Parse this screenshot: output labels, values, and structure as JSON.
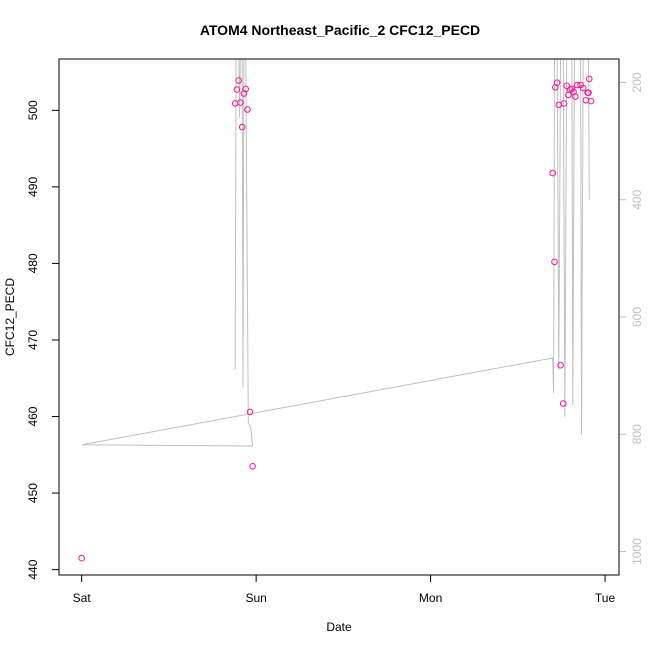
{
  "colors": {
    "points": "#ff1493",
    "line": "#c0c0c0",
    "axis": "#000000",
    "right_axis": "#c0c0c0"
  },
  "chart_data": {
    "type": "scatter",
    "title": "ATOM4 Northeast_Pacific_2 CFC12_PECD",
    "xlabel": "Date",
    "ylabel": "CFC12_PECD",
    "x_tick_labels": [
      "Sat",
      "Sun",
      "Mon",
      "Tue"
    ],
    "x_tick_days": [
      0,
      1,
      2,
      3
    ],
    "xlim_days": [
      -0.13,
      3.08
    ],
    "ylim": [
      439.3,
      506.7
    ],
    "y_ticks": [
      440,
      450,
      460,
      470,
      480,
      490,
      500
    ],
    "right_axis": {
      "label": "",
      "ticks": [
        200,
        400,
        600,
        800,
        1000
      ],
      "reversed": true,
      "ylim": [
        1040,
        160
      ],
      "color": "#c0c0c0"
    },
    "series": [
      {
        "marker": "circle-open",
        "color": "#ff1493",
        "points": [
          {
            "x": 0.0,
            "y": 441.5
          },
          {
            "x": 0.88,
            "y": 500.9
          },
          {
            "x": 0.89,
            "y": 502.7
          },
          {
            "x": 0.9,
            "y": 503.9
          },
          {
            "x": 0.91,
            "y": 501.0
          },
          {
            "x": 0.92,
            "y": 497.8
          },
          {
            "x": 0.93,
            "y": 502.2
          },
          {
            "x": 0.94,
            "y": 502.8
          },
          {
            "x": 0.95,
            "y": 500.1
          },
          {
            "x": 0.965,
            "y": 460.6
          },
          {
            "x": 0.98,
            "y": 453.5
          },
          {
            "x": 2.7,
            "y": 491.8
          },
          {
            "x": 2.71,
            "y": 480.2
          },
          {
            "x": 2.715,
            "y": 503.0
          },
          {
            "x": 2.725,
            "y": 503.6
          },
          {
            "x": 2.735,
            "y": 500.7
          },
          {
            "x": 2.745,
            "y": 466.7
          },
          {
            "x": 2.76,
            "y": 461.7
          },
          {
            "x": 2.765,
            "y": 500.9
          },
          {
            "x": 2.78,
            "y": 503.2
          },
          {
            "x": 2.79,
            "y": 502.0
          },
          {
            "x": 2.8,
            "y": 502.7
          },
          {
            "x": 2.81,
            "y": 502.8
          },
          {
            "x": 2.82,
            "y": 502.4
          },
          {
            "x": 2.83,
            "y": 501.8
          },
          {
            "x": 2.84,
            "y": 503.3
          },
          {
            "x": 2.86,
            "y": 503.3
          },
          {
            "x": 2.875,
            "y": 502.9
          },
          {
            "x": 2.89,
            "y": 501.3
          },
          {
            "x": 2.9,
            "y": 502.3
          },
          {
            "x": 2.905,
            "y": 502.3
          },
          {
            "x": 2.91,
            "y": 504.1
          },
          {
            "x": 2.92,
            "y": 501.2
          }
        ]
      },
      {
        "marker": "line",
        "color": "#c0c0c0",
        "axis": "right",
        "points": [
          {
            "x": 0.88,
            "y": 690
          },
          {
            "x": 0.885,
            "y": 140
          },
          {
            "x": 0.9,
            "y": 140
          },
          {
            "x": 0.905,
            "y": 260
          },
          {
            "x": 0.91,
            "y": 140
          },
          {
            "x": 0.92,
            "y": 140
          },
          {
            "x": 0.925,
            "y": 720
          },
          {
            "x": 0.93,
            "y": 140
          },
          {
            "x": 0.94,
            "y": 140
          },
          {
            "x": 0.955,
            "y": 780
          },
          {
            "x": 0.97,
            "y": 790
          },
          {
            "x": 0.98,
            "y": 820
          },
          {
            "x": 0.0,
            "y": 818
          },
          {
            "x": 2.7,
            "y": 670
          },
          {
            "x": 2.705,
            "y": 730
          },
          {
            "x": 2.71,
            "y": 140
          },
          {
            "x": 2.725,
            "y": 140
          },
          {
            "x": 2.735,
            "y": 690
          },
          {
            "x": 2.745,
            "y": 140
          },
          {
            "x": 2.76,
            "y": 140
          },
          {
            "x": 2.77,
            "y": 770
          },
          {
            "x": 2.78,
            "y": 140
          },
          {
            "x": 2.81,
            "y": 140
          },
          {
            "x": 2.815,
            "y": 750
          },
          {
            "x": 2.825,
            "y": 140
          },
          {
            "x": 2.86,
            "y": 140
          },
          {
            "x": 2.865,
            "y": 800
          },
          {
            "x": 2.875,
            "y": 140
          },
          {
            "x": 2.9,
            "y": 140
          },
          {
            "x": 2.905,
            "y": 150
          },
          {
            "x": 2.91,
            "y": 400
          }
        ]
      }
    ]
  }
}
